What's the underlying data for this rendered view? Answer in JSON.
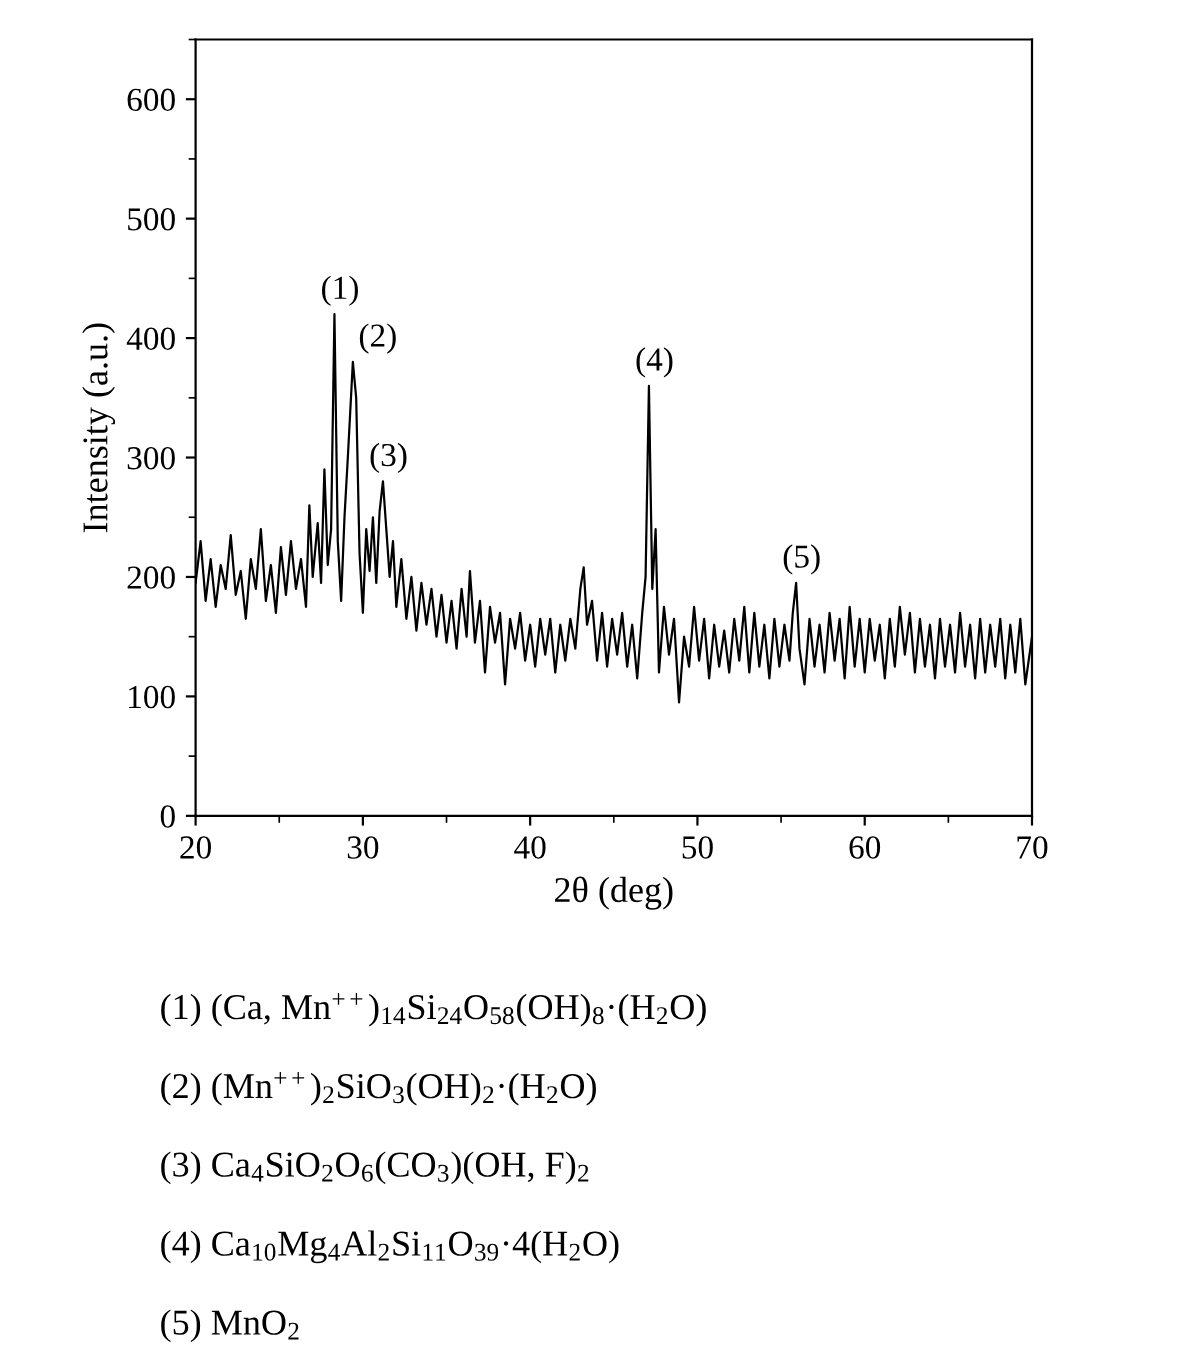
{
  "chart_data": {
    "type": "line",
    "xlabel": "2θ (deg)",
    "ylabel": "Intensity (a.u.)",
    "xlim": [
      20,
      70
    ],
    "ylim": [
      0,
      650
    ],
    "xticks": [
      20,
      30,
      40,
      50,
      60,
      70
    ],
    "yticks": [
      0,
      100,
      200,
      300,
      400,
      500,
      600
    ],
    "grid": false,
    "marker": "none",
    "line_style": "solid",
    "series": [
      {
        "color": "#000000",
        "x": [
          20.0,
          20.3,
          20.6,
          20.9,
          21.2,
          21.5,
          21.8,
          22.1,
          22.4,
          22.7,
          23.0,
          23.3,
          23.6,
          23.9,
          24.2,
          24.5,
          24.8,
          25.1,
          25.4,
          25.7,
          26.0,
          26.3,
          26.6,
          26.8,
          27.0,
          27.3,
          27.5,
          27.7,
          27.9,
          28.1,
          28.3,
          28.5,
          28.7,
          28.9,
          29.1,
          29.4,
          29.6,
          29.8,
          30.0,
          30.2,
          30.4,
          30.6,
          30.8,
          31.0,
          31.2,
          31.4,
          31.6,
          31.8,
          32.0,
          32.3,
          32.6,
          32.9,
          33.2,
          33.5,
          33.8,
          34.1,
          34.4,
          34.7,
          35.0,
          35.3,
          35.6,
          35.9,
          36.2,
          36.4,
          36.7,
          37.0,
          37.3,
          37.6,
          37.9,
          38.2,
          38.5,
          38.8,
          39.1,
          39.4,
          39.7,
          40.0,
          40.3,
          40.6,
          40.9,
          41.2,
          41.5,
          41.8,
          42.1,
          42.4,
          42.7,
          43.0,
          43.2,
          43.4,
          43.7,
          44.0,
          44.3,
          44.6,
          44.9,
          45.2,
          45.5,
          45.8,
          46.1,
          46.4,
          46.7,
          46.9,
          47.1,
          47.3,
          47.5,
          47.7,
          48.0,
          48.3,
          48.6,
          48.9,
          49.2,
          49.5,
          49.8,
          50.1,
          50.4,
          50.7,
          51.0,
          51.3,
          51.6,
          51.9,
          52.2,
          52.5,
          52.8,
          53.1,
          53.4,
          53.7,
          54.0,
          54.3,
          54.6,
          54.9,
          55.2,
          55.5,
          55.7,
          55.9,
          56.1,
          56.4,
          56.7,
          57.0,
          57.3,
          57.6,
          57.9,
          58.2,
          58.5,
          58.8,
          59.1,
          59.4,
          59.7,
          60.0,
          60.3,
          60.6,
          60.9,
          61.2,
          61.5,
          61.8,
          62.1,
          62.4,
          62.7,
          63.0,
          63.3,
          63.6,
          63.9,
          64.2,
          64.5,
          64.8,
          65.1,
          65.4,
          65.7,
          66.0,
          66.3,
          66.6,
          66.9,
          67.2,
          67.5,
          67.8,
          68.1,
          68.4,
          68.7,
          69.0,
          69.3,
          69.6,
          70.0
        ],
        "values": [
          195,
          230,
          180,
          215,
          175,
          210,
          190,
          235,
          185,
          205,
          165,
          215,
          190,
          240,
          180,
          210,
          170,
          225,
          185,
          230,
          190,
          215,
          175,
          260,
          200,
          245,
          195,
          290,
          210,
          240,
          420,
          230,
          180,
          250,
          300,
          380,
          350,
          220,
          170,
          240,
          205,
          250,
          195,
          255,
          280,
          240,
          200,
          230,
          175,
          215,
          165,
          200,
          155,
          195,
          160,
          190,
          150,
          185,
          145,
          180,
          140,
          190,
          150,
          205,
          145,
          180,
          120,
          175,
          145,
          170,
          110,
          165,
          140,
          170,
          130,
          160,
          125,
          165,
          135,
          165,
          120,
          160,
          130,
          165,
          140,
          190,
          208,
          160,
          180,
          130,
          170,
          125,
          165,
          135,
          170,
          125,
          160,
          115,
          170,
          200,
          360,
          190,
          240,
          120,
          175,
          135,
          165,
          95,
          150,
          125,
          175,
          130,
          165,
          115,
          160,
          125,
          155,
          120,
          165,
          130,
          175,
          120,
          170,
          125,
          160,
          115,
          165,
          125,
          160,
          130,
          170,
          195,
          140,
          110,
          165,
          125,
          160,
          120,
          170,
          130,
          165,
          115,
          175,
          125,
          165,
          120,
          165,
          130,
          160,
          115,
          165,
          125,
          175,
          135,
          170,
          120,
          165,
          125,
          160,
          115,
          165,
          125,
          160,
          120,
          170,
          125,
          160,
          115,
          165,
          120,
          160,
          125,
          165,
          115,
          160,
          120,
          165,
          110,
          150
        ]
      }
    ],
    "annotations": [
      {
        "text": "(1)",
        "x": 28.3,
        "y": 420
      },
      {
        "text": "(2)",
        "x": 29.4,
        "y": 380
      },
      {
        "text": "(3)",
        "x": 31.2,
        "y": 280
      },
      {
        "text": "(4)",
        "x": 47.1,
        "y": 360
      },
      {
        "text": "(5)",
        "x": 55.9,
        "y": 195
      },
      "(1) (Ca, Mn$^{++}$)$_{14}$Si$_{24}$O$_{58}$(OH)$_{8}$·(H$_{2}$O)",
      "(2) (Mn$^{++}$)$_{2}$SiO$_{3}$(OH)$_{2}$·(H$_{2}$O)",
      "(3) Ca$_{4}$SiO$_{2}$O$_{6}$(CO$_{3}$)(OH, F)$_{2}$",
      "(4) Ca$_{10}$Mg$_{4}$Al$_{2}$Si$_{11}$O$_{39}$·4(H$_{2}$O)",
      "(5) MnO$_{2}$"
    ]
  }
}
